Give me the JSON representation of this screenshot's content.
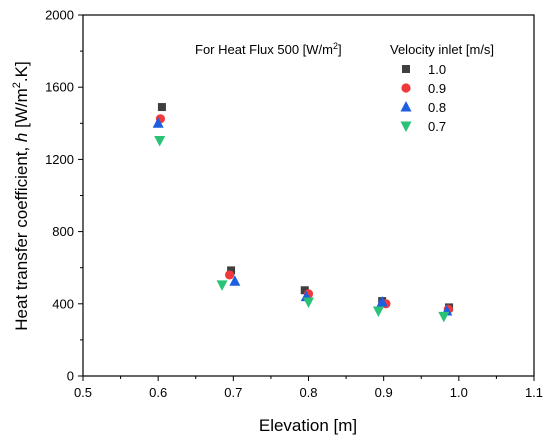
{
  "chart_data": {
    "type": "scatter",
    "title": "",
    "xlabel": "Elevation [m]",
    "ylabel_parts": {
      "main": "Heat transfer coefficient, ",
      "sym": "h",
      "unit_pre": " [W/m",
      "sup": "2",
      "unit_post": ".K]"
    },
    "xlim": [
      0.5,
      1.1
    ],
    "ylim": [
      0,
      2000
    ],
    "x_ticks": [
      "0.5",
      "0.6",
      "0.7",
      "0.8",
      "0.9",
      "1.0",
      "1.1"
    ],
    "y_ticks": [
      "0",
      "400",
      "800",
      "1200",
      "1600",
      "2000"
    ],
    "x_tick_values": [
      0.5,
      0.6,
      0.7,
      0.8,
      0.9,
      1.0,
      1.1
    ],
    "y_tick_values": [
      0,
      400,
      800,
      1200,
      1600,
      2000
    ],
    "grid": false,
    "annotation": {
      "text": "For Heat Flux 500 [W/m",
      "sup": "2",
      "post": "]"
    },
    "legend": {
      "title": "Velocity inlet [m/s]",
      "position": "top-right"
    },
    "series": [
      {
        "name": "1.0",
        "marker": "square",
        "color": "#3f3f3f",
        "x": [
          0.605,
          0.697,
          0.795,
          0.898,
          0.987
        ],
        "y": [
          1490,
          585,
          475,
          415,
          380
        ]
      },
      {
        "name": "0.9",
        "marker": "circle",
        "color": "#f0393b",
        "x": [
          0.603,
          0.695,
          0.8,
          0.903,
          0.986
        ],
        "y": [
          1425,
          560,
          455,
          400,
          370
        ]
      },
      {
        "name": "0.8",
        "marker": "triangle-up",
        "color": "#1c5fe0",
        "x": [
          0.6,
          0.702,
          0.797,
          0.898,
          0.984
        ],
        "y": [
          1400,
          525,
          440,
          410,
          360
        ]
      },
      {
        "name": "0.7",
        "marker": "triangle-down",
        "color": "#29c277",
        "x": [
          0.602,
          0.685,
          0.8,
          0.893,
          0.98
        ],
        "y": [
          1305,
          505,
          410,
          360,
          330
        ]
      }
    ]
  }
}
